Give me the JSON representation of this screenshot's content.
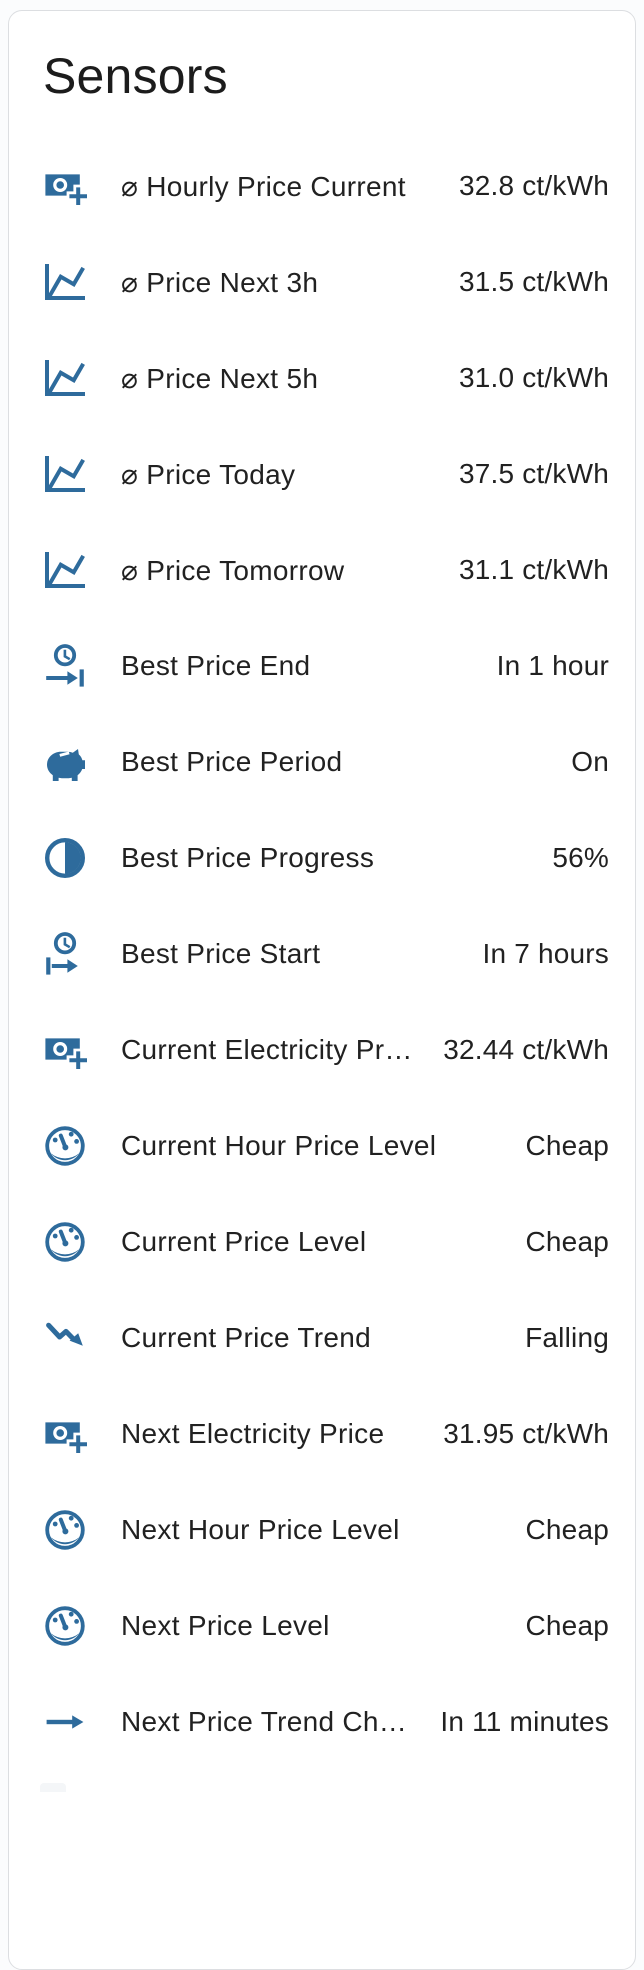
{
  "card": {
    "title": "Sensors"
  },
  "icon_color": "#2e6b9c",
  "rows": [
    {
      "icon": "cash-plus-icon",
      "label": "⌀ Hourly Price Current",
      "value": "32.8 ct/kWh"
    },
    {
      "icon": "chart-line-icon",
      "label": "⌀ Price Next 3h",
      "value": "31.5 ct/kWh"
    },
    {
      "icon": "chart-line-icon",
      "label": "⌀ Price Next 5h",
      "value": "31.0 ct/kWh"
    },
    {
      "icon": "chart-line-icon",
      "label": "⌀ Price Today",
      "value": "37.5 ct/kWh"
    },
    {
      "icon": "chart-line-icon",
      "label": "⌀ Price Tomorrow",
      "value": "31.1 ct/kWh"
    },
    {
      "icon": "clock-end-icon",
      "label": "Best Price End",
      "value": "In 1 hour"
    },
    {
      "icon": "piggy-bank-icon",
      "label": "Best Price Period",
      "value": "On"
    },
    {
      "icon": "circle-half-icon",
      "label": "Best Price Progress",
      "value": "56%"
    },
    {
      "icon": "clock-start-icon",
      "label": "Best Price Start",
      "value": "In 7 hours"
    },
    {
      "icon": "cash-plus-icon",
      "label": "Current Electricity Pr…",
      "value": "32.44 ct/kWh"
    },
    {
      "icon": "gauge-icon",
      "label": "Current Hour Price Level",
      "value": "Cheap"
    },
    {
      "icon": "gauge-icon",
      "label": "Current Price Level",
      "value": "Cheap"
    },
    {
      "icon": "trending-down-icon",
      "label": "Current Price Trend",
      "value": "Falling"
    },
    {
      "icon": "cash-plus-icon",
      "label": "Next Electricity Price",
      "value": "31.95 ct/kWh"
    },
    {
      "icon": "gauge-icon",
      "label": "Next Hour Price Level",
      "value": "Cheap"
    },
    {
      "icon": "gauge-icon",
      "label": "Next Price Level",
      "value": "Cheap"
    },
    {
      "icon": "arrow-right-icon",
      "label": "Next Price Trend Ch…",
      "value": "In 11 minutes"
    }
  ]
}
